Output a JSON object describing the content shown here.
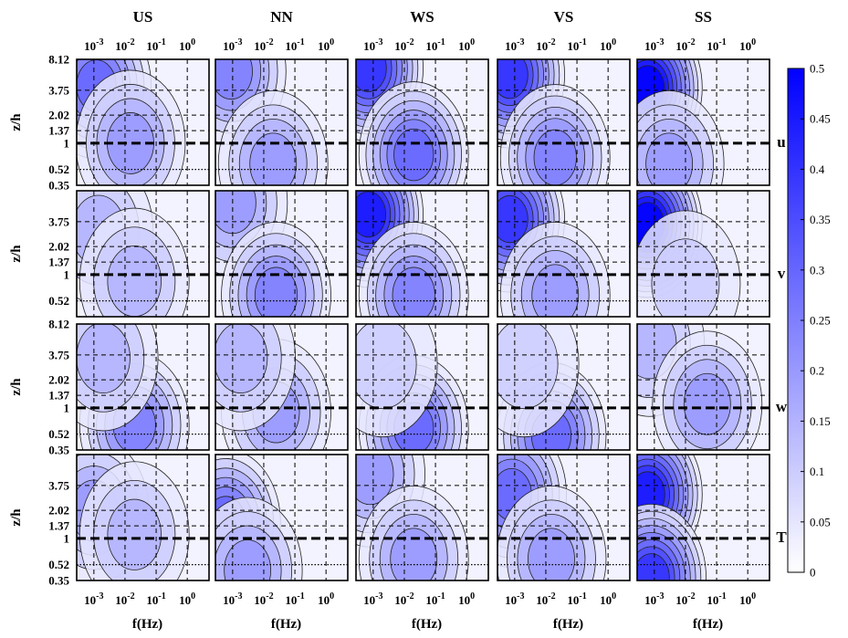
{
  "chart_data": {
    "type": "heatmap",
    "columns": [
      "US",
      "NN",
      "WS",
      "VS",
      "SS"
    ],
    "rows": [
      "u",
      "v",
      "w",
      "T"
    ],
    "xlabel": "f(Hz)",
    "ylabel": "z/h",
    "x_ticks": [
      {
        "base": "10",
        "exp": "-3"
      },
      {
        "base": "10",
        "exp": "-2"
      },
      {
        "base": "10",
        "exp": "-1"
      },
      {
        "base": "10",
        "exp": "0"
      }
    ],
    "x_scale": "log",
    "xlim": [
      0.00028,
      5
    ],
    "y_ticks": [
      "0.35",
      "0.52",
      "1",
      "1.37",
      "2.02",
      "3.75",
      "8.12"
    ],
    "y_ticks_by_row": [
      [
        "0.35",
        "0.52",
        "1",
        "1.37",
        "2.02",
        "3.75",
        "8.12"
      ],
      [
        "0.52",
        "1",
        "1.37",
        "2.02",
        "3.75"
      ],
      [
        "0.35",
        "0.52",
        "1",
        "1.37",
        "2.02",
        "3.75",
        "8.12"
      ],
      [
        "0.35",
        "0.52",
        "1",
        "1.37",
        "2.02",
        "3.75"
      ]
    ],
    "y_scale": "log",
    "ylim": [
      0.35,
      8.12
    ],
    "canopy_height_line": 1,
    "dotted_line": 0.52,
    "grid": true,
    "colorbar": {
      "ticks": [
        "0",
        "0.05",
        "0.1",
        "0.15",
        "0.2",
        "0.25",
        "0.3",
        "0.35",
        "0.4",
        "0.45",
        "0.5"
      ],
      "min": 0,
      "max": 0.5,
      "colors": [
        "#ffffff",
        "#0000ff"
      ]
    },
    "panels": {
      "US": {
        "u": {
          "peaks": [
            {
              "f": 0.0012,
              "z": 4.2,
              "v": 0.3
            },
            {
              "f": 0.015,
              "z": 1.0,
              "v": 0.22
            }
          ]
        },
        "v": {
          "peaks": [
            {
              "f": 0.0014,
              "z": 3.0,
              "v": 0.14
            },
            {
              "f": 0.02,
              "z": 0.85,
              "v": 0.16
            }
          ]
        },
        "w": {
          "peaks": [
            {
              "f": 0.02,
              "z": 0.65,
              "v": 0.24
            },
            {
              "f": 0.002,
              "z": 3.5,
              "v": 0.14
            }
          ]
        },
        "T": {
          "peaks": [
            {
              "f": 0.001,
              "z": 2.0,
              "v": 0.22
            },
            {
              "f": 0.02,
              "z": 1.1,
              "v": 0.16
            }
          ]
        }
      },
      "NN": {
        "u": {
          "peaks": [
            {
              "f": 0.0009,
              "z": 6.0,
              "v": 0.25
            },
            {
              "f": 0.02,
              "z": 0.6,
              "v": 0.22
            }
          ]
        },
        "v": {
          "peaks": [
            {
              "f": 0.001,
              "z": 6.0,
              "v": 0.2
            },
            {
              "f": 0.025,
              "z": 0.6,
              "v": 0.25
            }
          ]
        },
        "w": {
          "peaks": [
            {
              "f": 0.025,
              "z": 0.9,
              "v": 0.22
            },
            {
              "f": 0.0018,
              "z": 3.5,
              "v": 0.15
            }
          ]
        },
        "T": {
          "peaks": [
            {
              "f": 0.0006,
              "z": 1.5,
              "v": 0.3
            },
            {
              "f": 0.003,
              "z": 0.45,
              "v": 0.2
            }
          ]
        }
      },
      "WS": {
        "u": {
          "peaks": [
            {
              "f": 0.0007,
              "z": 6.5,
              "v": 0.4
            },
            {
              "f": 0.02,
              "z": 0.75,
              "v": 0.28
            }
          ]
        },
        "v": {
          "peaks": [
            {
              "f": 0.0007,
              "z": 4.5,
              "v": 0.45
            },
            {
              "f": 0.02,
              "z": 0.6,
              "v": 0.24
            }
          ]
        },
        "w": {
          "peaks": [
            {
              "f": 0.02,
              "z": 0.6,
              "v": 0.28
            },
            {
              "f": 0.002,
              "z": 3.0,
              "v": 0.08
            }
          ]
        },
        "T": {
          "peaks": [
            {
              "f": 0.0008,
              "z": 5.0,
              "v": 0.22
            },
            {
              "f": 0.02,
              "z": 0.6,
              "v": 0.2
            }
          ]
        }
      },
      "VS": {
        "u": {
          "peaks": [
            {
              "f": 0.0007,
              "z": 5.5,
              "v": 0.38
            },
            {
              "f": 0.02,
              "z": 0.7,
              "v": 0.24
            }
          ]
        },
        "v": {
          "peaks": [
            {
              "f": 0.0007,
              "z": 4.0,
              "v": 0.42
            },
            {
              "f": 0.02,
              "z": 0.6,
              "v": 0.2
            }
          ]
        },
        "w": {
          "peaks": [
            {
              "f": 0.015,
              "z": 0.5,
              "v": 0.3
            },
            {
              "f": 0.002,
              "z": 3.0,
              "v": 0.08
            }
          ]
        },
        "T": {
          "peaks": [
            {
              "f": 0.0008,
              "z": 3.0,
              "v": 0.28
            },
            {
              "f": 0.015,
              "z": 0.6,
              "v": 0.2
            }
          ]
        }
      },
      "SS": {
        "u": {
          "peaks": [
            {
              "f": 0.0006,
              "z": 4.0,
              "v": 0.5
            },
            {
              "f": 0.003,
              "z": 0.6,
              "v": 0.22
            }
          ]
        },
        "v": {
          "peaks": [
            {
              "f": 0.0006,
              "z": 3.5,
              "v": 0.5
            },
            {
              "f": 0.01,
              "z": 0.8,
              "v": 0.12
            }
          ]
        },
        "w": {
          "peaks": [
            {
              "f": 0.0007,
              "z": 5.0,
              "v": 0.16
            },
            {
              "f": 0.05,
              "z": 1.1,
              "v": 0.2
            }
          ]
        },
        "T": {
          "peaks": [
            {
              "f": 0.0006,
              "z": 3.0,
              "v": 0.45
            },
            {
              "f": 0.0008,
              "z": 0.38,
              "v": 0.4
            }
          ]
        }
      }
    }
  }
}
